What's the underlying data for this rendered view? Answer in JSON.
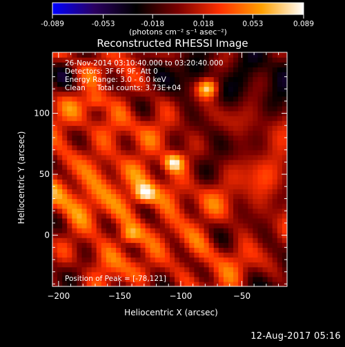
{
  "colorbar": {
    "tick_labels": [
      "-0.089",
      "-0.053",
      "-0.018",
      "0.018",
      "0.053",
      "0.089"
    ],
    "tick_values": [
      -0.089,
      -0.053,
      -0.018,
      0.018,
      0.053,
      0.089
    ],
    "range": [
      -0.089,
      0.089
    ],
    "unit_label": "(photons cm⁻² s⁻¹ asec⁻²)",
    "colors": [
      "#0000ff",
      "#2a0060",
      "#000000",
      "#7a0000",
      "#ff3000",
      "#ffa000",
      "#ffffff"
    ]
  },
  "chart_data": {
    "type": "heatmap",
    "title": "Reconstructed RHESSI Image",
    "xlabel": "Heliocentric X (arcsec)",
    "ylabel": "Heliocentric Y (arcsec)",
    "xlim": [
      -205,
      -13
    ],
    "ylim": [
      -42,
      150
    ],
    "x_ticks": [
      -200,
      -150,
      -100,
      -50
    ],
    "y_ticks": [
      0,
      50,
      100
    ],
    "x_tick_labels": [
      "−200",
      "−150",
      "−100",
      "−50"
    ],
    "y_tick_labels": [
      "0",
      "50",
      "100"
    ],
    "annotations": [
      "26-Nov-2014 03:10:40.000 to 03:20:40.000",
      "Detectors: 3F 6F 9F, Att 0",
      "Energy Range: 3.0 - 6.0 keV",
      "Clean     Total counts: 3.73E+04"
    ],
    "peak_label": "Position of Peak = [-78,121]",
    "peak": {
      "x": -78,
      "y": 121,
      "value": 0.089
    },
    "sources": [
      {
        "x": -78,
        "y": 121,
        "value": 0.089
      },
      {
        "x": -106,
        "y": 60,
        "value": 0.08
      },
      {
        "x": -130,
        "y": 34,
        "value": 0.07
      },
      {
        "x": -142,
        "y": 0,
        "value": 0.055
      },
      {
        "x": -170,
        "y": 110,
        "value": 0.045
      }
    ]
  },
  "timestamp": "12-Aug-2017 05:16"
}
